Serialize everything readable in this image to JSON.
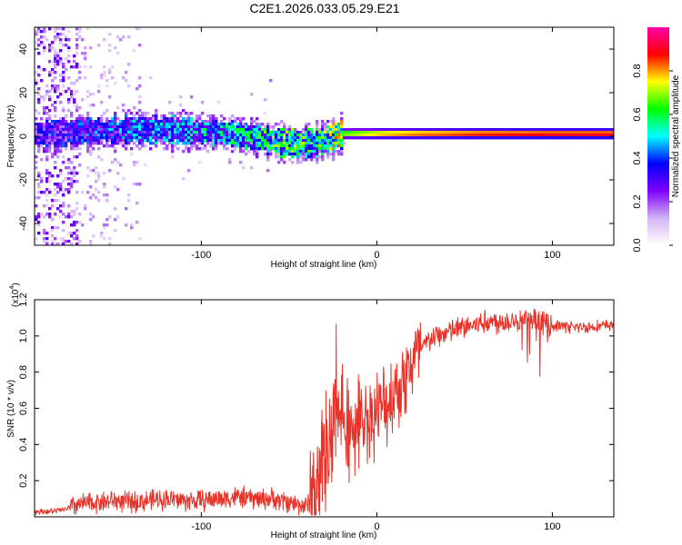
{
  "title": "C2E1.2026.033.05.29.E21",
  "chart_data": [
    {
      "type": "heatmap",
      "name": "spectrogram",
      "xlabel": "Height of straight line (km)",
      "ylabel": "Frequency (Hz)",
      "xlim": [
        -195,
        135
      ],
      "ylim": [
        -50,
        50
      ],
      "xticks": [
        -100,
        0,
        100
      ],
      "yticks": [
        -40,
        -20,
        0,
        20,
        40
      ],
      "xtick_labels": [
        "-100",
        "0",
        "100"
      ],
      "ytick_labels": [
        "-40",
        "-20",
        "0",
        "20",
        "40"
      ],
      "colorbar": {
        "label": "Normalized spectral amplitude",
        "range": [
          0,
          1
        ],
        "ticks": [
          0.0,
          0.2,
          0.4,
          0.6,
          0.8
        ],
        "tick_labels": [
          "0.0",
          "0.2",
          "0.4",
          "0.6",
          "0.8"
        ],
        "colors": [
          "#ffffff",
          "#d2b3f5",
          "#7f00ff",
          "#0000ff",
          "#00ffff",
          "#00ff00",
          "#ffff00",
          "#ff0000",
          "#ff00aa"
        ]
      },
      "signal_band": {
        "x": [
          -195,
          -170,
          -140,
          -120,
          -100,
          -80,
          -60,
          -45,
          -35,
          -20,
          0,
          20,
          60,
          100,
          135
        ],
        "center_hz": [
          1,
          2,
          3,
          3,
          2,
          1,
          -2,
          -4,
          -3,
          1,
          1,
          1,
          1,
          1,
          1
        ],
        "amplitude": [
          0.3,
          0.35,
          0.4,
          0.42,
          0.45,
          0.48,
          0.55,
          0.6,
          0.5,
          0.7,
          0.8,
          0.85,
          0.9,
          0.92,
          0.92
        ]
      }
    },
    {
      "type": "line",
      "name": "snr",
      "xlabel": "Height of straight line (km)",
      "ylabel": "SNR (10 * v/v)",
      "y_multiplier_label": "(x10",
      "y_multiplier_exp": "4",
      "xlim": [
        -195,
        135
      ],
      "ylim": [
        0,
        1.2
      ],
      "xticks": [
        -100,
        0,
        100
      ],
      "yticks": [
        0.2,
        0.4,
        0.6,
        0.8,
        1.0,
        1.2
      ],
      "xtick_labels": [
        "-100",
        "0",
        "100"
      ],
      "ytick_labels": [
        "0.2",
        "0.4",
        "0.6",
        "0.8",
        "1.0",
        "1.2"
      ],
      "color": "#e8332a",
      "x": [
        -195,
        -185,
        -178,
        -170,
        -160,
        -150,
        -140,
        -130,
        -120,
        -110,
        -100,
        -90,
        -80,
        -70,
        -60,
        -50,
        -40,
        -35,
        -30,
        -25,
        -20,
        -15,
        -10,
        -5,
        0,
        5,
        10,
        15,
        20,
        25,
        30,
        40,
        50,
        60,
        70,
        80,
        90,
        100,
        110,
        120,
        135
      ],
      "y": [
        0.03,
        0.03,
        0.04,
        0.07,
        0.08,
        0.09,
        0.08,
        0.09,
        0.1,
        0.09,
        0.09,
        0.1,
        0.11,
        0.1,
        0.1,
        0.08,
        0.06,
        0.12,
        0.3,
        0.5,
        0.55,
        0.5,
        0.52,
        0.55,
        0.58,
        0.62,
        0.7,
        0.75,
        0.85,
        0.92,
        0.98,
        1.02,
        1.05,
        1.07,
        1.08,
        1.09,
        1.08,
        1.06,
        1.05,
        1.05,
        1.06
      ]
    }
  ]
}
